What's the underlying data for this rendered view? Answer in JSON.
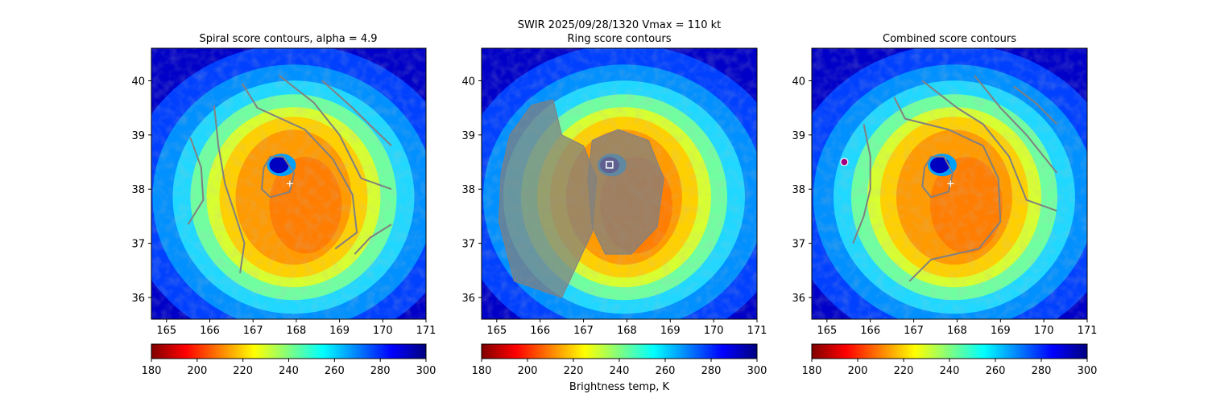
{
  "suptitle_line1": "SWIR  2025/09/28/1320    Vmax = 110 kt",
  "colorbar_label": "Brightness temp, K",
  "colormap": [
    "#800000",
    "#ff0000",
    "#ff8000",
    "#ffff00",
    "#80ff80",
    "#00ffff",
    "#0080ff",
    "#0000ff",
    "#000080"
  ],
  "chart_data": [
    {
      "type": "heatmap",
      "title": "Spiral score contours, alpha =  4.9",
      "xlim": [
        164.65,
        171.0
      ],
      "ylim": [
        35.6,
        40.6
      ],
      "xticks": [
        165,
        166,
        167,
        168,
        169,
        170,
        171
      ],
      "yticks": [
        36,
        37,
        38,
        39,
        40
      ],
      "colorbar": {
        "range": [
          180,
          300
        ],
        "ticks": [
          180,
          200,
          220,
          240,
          260,
          280,
          300
        ]
      },
      "center_marker": {
        "symbol": "+",
        "lon": 167.85,
        "lat": 38.1
      },
      "contour_color": "#808080",
      "contours": [
        {
          "name": "spiral-arc-west",
          "points": [
            [
              165.55,
              38.95
            ],
            [
              165.8,
              38.4
            ],
            [
              165.85,
              37.8
            ],
            [
              165.5,
              37.35
            ]
          ]
        },
        {
          "name": "spiral-arc-mid",
          "points": [
            [
              166.1,
              39.55
            ],
            [
              166.2,
              38.8
            ],
            [
              166.35,
              38.1
            ],
            [
              166.6,
              37.5
            ],
            [
              166.8,
              37.0
            ],
            [
              166.7,
              36.45
            ]
          ]
        },
        {
          "name": "spiral-arc-main",
          "points": [
            [
              166.75,
              39.95
            ],
            [
              167.1,
              39.5
            ],
            [
              168.2,
              39.1
            ],
            [
              168.85,
              38.55
            ],
            [
              169.3,
              37.9
            ],
            [
              169.4,
              37.2
            ],
            [
              168.9,
              36.9
            ]
          ]
        },
        {
          "name": "spiral-arc-east",
          "points": [
            [
              167.6,
              40.1
            ],
            [
              168.4,
              39.6
            ],
            [
              169.0,
              39.0
            ],
            [
              169.5,
              38.2
            ],
            [
              170.2,
              38.0
            ]
          ]
        },
        {
          "name": "spiral-arc-far-east",
          "points": [
            [
              168.6,
              40.0
            ],
            [
              169.3,
              39.5
            ],
            [
              170.2,
              38.8
            ]
          ]
        },
        {
          "name": "spiral-arc-southeast",
          "points": [
            [
              169.35,
              36.8
            ],
            [
              169.7,
              37.1
            ],
            [
              170.2,
              37.35
            ]
          ]
        },
        {
          "name": "eye-contour",
          "points": [
            [
              167.25,
              38.4
            ],
            [
              167.4,
              38.6
            ],
            [
              167.7,
              38.6
            ],
            [
              167.95,
              38.3
            ],
            [
              167.85,
              37.95
            ],
            [
              167.4,
              37.85
            ],
            [
              167.2,
              38.0
            ],
            [
              167.25,
              38.4
            ]
          ]
        }
      ]
    },
    {
      "type": "heatmap",
      "title": "Ring score contours",
      "xlim": [
        164.65,
        171.0
      ],
      "ylim": [
        35.6,
        40.6
      ],
      "xticks": [
        165,
        166,
        167,
        168,
        169,
        170,
        171
      ],
      "yticks": [
        36,
        37,
        38,
        39,
        40
      ],
      "colorbar": {
        "range": [
          180,
          300
        ],
        "ticks": [
          180,
          200,
          220,
          240,
          260,
          280,
          300
        ]
      },
      "center_marker": {
        "symbol": "square",
        "lon": 167.6,
        "lat": 38.45
      },
      "contour_color": "#808080",
      "contours": [
        {
          "name": "ring-region-west",
          "points": [
            [
              165.3,
              39.0
            ],
            [
              165.8,
              39.55
            ],
            [
              166.3,
              39.65
            ],
            [
              166.5,
              39.0
            ],
            [
              167.0,
              38.8
            ],
            [
              167.3,
              38.2
            ],
            [
              167.2,
              37.2
            ],
            [
              166.5,
              36.0
            ],
            [
              165.4,
              36.3
            ],
            [
              165.05,
              37.4
            ],
            [
              165.1,
              38.3
            ],
            [
              165.3,
              39.0
            ]
          ]
        },
        {
          "name": "ring-region-east",
          "points": [
            [
              167.2,
              38.9
            ],
            [
              167.8,
              39.1
            ],
            [
              168.5,
              38.9
            ],
            [
              168.85,
              38.2
            ],
            [
              168.7,
              37.3
            ],
            [
              168.1,
              36.8
            ],
            [
              167.5,
              36.8
            ],
            [
              167.2,
              37.3
            ],
            [
              167.1,
              38.2
            ],
            [
              167.2,
              38.9
            ]
          ]
        }
      ]
    },
    {
      "type": "heatmap",
      "title": "Combined score contours",
      "xlim": [
        164.65,
        171.0
      ],
      "ylim": [
        35.6,
        40.6
      ],
      "xticks": [
        165,
        166,
        167,
        168,
        169,
        170,
        171
      ],
      "yticks": [
        36,
        37,
        38,
        39,
        40
      ],
      "colorbar": {
        "range": [
          180,
          300
        ],
        "ticks": [
          180,
          200,
          220,
          240,
          260,
          280,
          300
        ]
      },
      "center_marker": {
        "symbol": "+",
        "lon": 167.85,
        "lat": 38.1
      },
      "extra_marker": {
        "symbol": "octagon",
        "lon": 165.4,
        "lat": 38.5
      },
      "contour_color": "#808080",
      "contours": [
        {
          "name": "combined-arc-west",
          "points": [
            [
              165.85,
              39.2
            ],
            [
              166.0,
              38.6
            ],
            [
              166.0,
              38.0
            ],
            [
              165.85,
              37.5
            ],
            [
              165.6,
              37.0
            ]
          ]
        },
        {
          "name": "combined-arc-mid",
          "points": [
            [
              166.55,
              39.7
            ],
            [
              166.8,
              39.3
            ],
            [
              167.8,
              39.1
            ],
            [
              168.6,
              38.8
            ],
            [
              168.95,
              38.2
            ],
            [
              169.0,
              37.4
            ],
            [
              168.5,
              36.9
            ],
            [
              167.4,
              36.7
            ],
            [
              166.9,
              36.3
            ]
          ]
        },
        {
          "name": "combined-arc-east",
          "points": [
            [
              167.2,
              40.0
            ],
            [
              168.0,
              39.5
            ],
            [
              168.6,
              39.2
            ],
            [
              169.2,
              38.6
            ],
            [
              169.6,
              37.8
            ],
            [
              170.3,
              37.6
            ]
          ]
        },
        {
          "name": "combined-arc-far-east",
          "points": [
            [
              168.4,
              40.1
            ],
            [
              169.0,
              39.5
            ],
            [
              169.6,
              39.0
            ],
            [
              170.3,
              38.3
            ]
          ]
        },
        {
          "name": "combined-arc-northeast",
          "points": [
            [
              169.3,
              39.9
            ],
            [
              169.8,
              39.6
            ],
            [
              170.3,
              39.2
            ]
          ]
        },
        {
          "name": "eye-contour",
          "points": [
            [
              167.25,
              38.4
            ],
            [
              167.4,
              38.6
            ],
            [
              167.7,
              38.6
            ],
            [
              167.9,
              38.3
            ],
            [
              167.8,
              37.95
            ],
            [
              167.4,
              37.85
            ],
            [
              167.2,
              38.05
            ],
            [
              167.25,
              38.4
            ]
          ]
        }
      ]
    }
  ]
}
